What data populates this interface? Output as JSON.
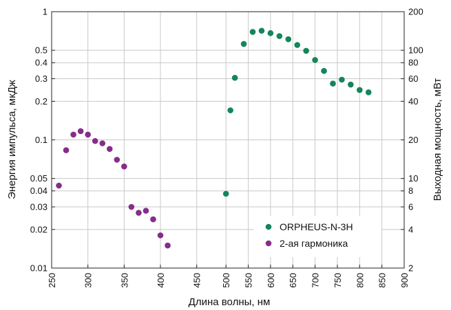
{
  "chart_data": {
    "type": "scatter",
    "xlabel": "Длина волны, нм",
    "ylabel_left": "Энергия импульса, мкДж",
    "ylabel_right": "Выходная мощность, мВт",
    "left_scale": "log",
    "right_scale": "log",
    "grid": true,
    "legend_position": "bottom-right",
    "panels": [
      {
        "x_ticks": [
          250,
          300,
          350,
          400,
          450
        ],
        "y_ticks": [
          0.01,
          0.02,
          0.03,
          0.04,
          0.05,
          0.1,
          0.2,
          0.3,
          0.4,
          0.5,
          1
        ],
        "y_tick_labels": [
          "0.01",
          "0.02",
          "0.03",
          "0.04",
          "0.05",
          "0.1",
          "0.2",
          "0.3",
          "0.4",
          "0.5",
          "1"
        ],
        "xlim": [
          250,
          475
        ],
        "ylim": [
          0.01,
          1
        ]
      },
      {
        "x_ticks": [
          500,
          550,
          600,
          650,
          700,
          750,
          800,
          850,
          900
        ],
        "y_ticks": [
          2,
          4,
          6,
          8,
          10,
          20,
          40,
          60,
          80,
          100,
          200
        ],
        "y_tick_labels": [
          "2",
          "4",
          "6",
          "8",
          "10",
          "20",
          "40",
          "60",
          "80",
          "100",
          "200"
        ],
        "xlim": [
          475,
          900
        ],
        "ylim": [
          2,
          200
        ]
      }
    ],
    "series": [
      {
        "name": "ORPHEUS-N-3H",
        "color": "#13865a",
        "axis": "right",
        "x": [
          500,
          510,
          520,
          540,
          560,
          580,
          600,
          620,
          640,
          660,
          680,
          700,
          720,
          740,
          760,
          780,
          800,
          820
        ],
        "y": [
          7.6,
          34,
          61,
          112,
          139,
          142,
          136,
          129,
          122,
          110,
          99,
          84,
          69,
          55,
          59,
          54,
          49,
          47
        ]
      },
      {
        "name": "2-ая гармоника",
        "color": "#862d8a",
        "axis": "left",
        "x": [
          260,
          270,
          280,
          290,
          300,
          310,
          320,
          330,
          340,
          350,
          360,
          370,
          380,
          390,
          400,
          410
        ],
        "y": [
          0.044,
          0.083,
          0.11,
          0.117,
          0.11,
          0.098,
          0.094,
          0.085,
          0.07,
          0.062,
          0.03,
          0.027,
          0.028,
          0.024,
          0.018,
          0.015
        ]
      }
    ]
  }
}
